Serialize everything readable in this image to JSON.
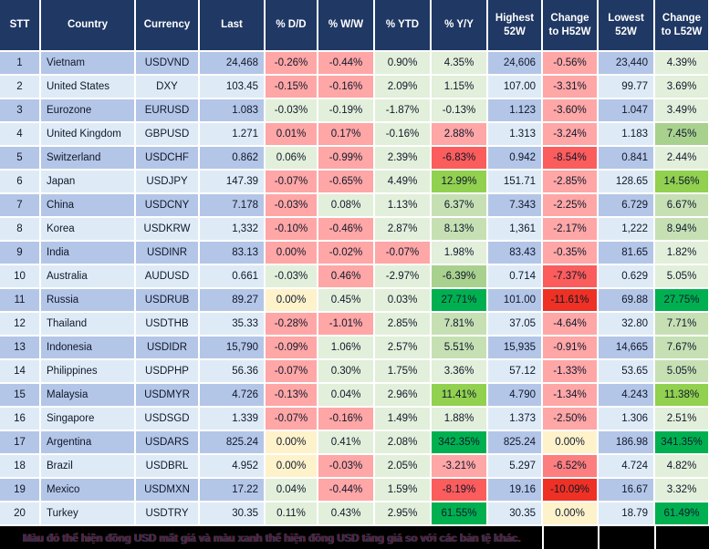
{
  "palette": {
    "p": "#FFA6A6",
    "p2": "#FC7E7E",
    "r": "#FB5C5C",
    "R": "#EE3124",
    "y": "#FEF2CB",
    "g": "#E2EFDA",
    "g2": "#C6E0B4",
    "g3": "#A9D18E",
    "g4": "#92D050",
    "g5": "#00B050",
    "header_bg": "#203864",
    "header_text": "#FFFFFF",
    "row_odd": "#B4C6E7",
    "row_even": "#DEEBF7",
    "note_bg": "#000000"
  },
  "table": {
    "columns": [
      {
        "key": "stt",
        "label": "STT"
      },
      {
        "key": "country",
        "label": "Country"
      },
      {
        "key": "currency",
        "label": "Currency"
      },
      {
        "key": "last",
        "label": "Last"
      },
      {
        "key": "dd",
        "label": "% D/D"
      },
      {
        "key": "ww",
        "label": "% W/W"
      },
      {
        "key": "ytd",
        "label": "% YTD"
      },
      {
        "key": "yy",
        "label": "% Y/Y"
      },
      {
        "key": "h52w",
        "label": "Highest 52W"
      },
      {
        "key": "ch52w",
        "label": "Change to H52W"
      },
      {
        "key": "l52w",
        "label": "Lowest 52W"
      },
      {
        "key": "cl52w",
        "label": "Change to L52W"
      }
    ],
    "rows": [
      [
        "1",
        "Vietnam",
        "USDVND",
        "24,468",
        [
          "-0.26%",
          "p"
        ],
        [
          "-0.44%",
          "p"
        ],
        [
          "0.90%",
          "g"
        ],
        [
          "4.35%",
          "g"
        ],
        "24,606",
        [
          "-0.56%",
          "p"
        ],
        "23,440",
        [
          "4.39%",
          "g"
        ]
      ],
      [
        "2",
        "United States",
        "DXY",
        "103.45",
        [
          "-0.15%",
          "p"
        ],
        [
          "-0.16%",
          "p"
        ],
        [
          "2.09%",
          "g"
        ],
        [
          "1.15%",
          "g"
        ],
        "107.00",
        [
          "-3.31%",
          "p"
        ],
        "99.77",
        [
          "3.69%",
          "g"
        ]
      ],
      [
        "3",
        "Eurozone",
        "EURUSD",
        "1.083",
        [
          "-0.03%",
          "g"
        ],
        [
          "-0.19%",
          "g"
        ],
        [
          "-1.87%",
          "g"
        ],
        [
          "-0.13%",
          "g"
        ],
        "1.123",
        [
          "-3.60%",
          "p"
        ],
        "1.047",
        [
          "3.49%",
          "g"
        ]
      ],
      [
        "4",
        "United Kingdom",
        "GBPUSD",
        "1.271",
        [
          "0.01%",
          "p"
        ],
        [
          "0.17%",
          "p"
        ],
        [
          "-0.16%",
          "g"
        ],
        [
          "2.88%",
          "p"
        ],
        "1.313",
        [
          "-3.24%",
          "p"
        ],
        "1.183",
        [
          "7.45%",
          "g3"
        ]
      ],
      [
        "5",
        "Switzerland",
        "USDCHF",
        "0.862",
        [
          "0.06%",
          "g"
        ],
        [
          "-0.99%",
          "p"
        ],
        [
          "2.39%",
          "g"
        ],
        [
          "-6.83%",
          "r"
        ],
        "0.942",
        [
          "-8.54%",
          "r"
        ],
        "0.841",
        [
          "2.44%",
          "g"
        ]
      ],
      [
        "6",
        "Japan",
        "USDJPY",
        "147.39",
        [
          "-0.07%",
          "p"
        ],
        [
          "-0.65%",
          "p"
        ],
        [
          "4.49%",
          "g"
        ],
        [
          "12.99%",
          "g4"
        ],
        "151.71",
        [
          "-2.85%",
          "p"
        ],
        "128.65",
        [
          "14.56%",
          "g4"
        ]
      ],
      [
        "7",
        "China",
        "USDCNY",
        "7.178",
        [
          "-0.03%",
          "p"
        ],
        [
          "0.08%",
          "g"
        ],
        [
          "1.13%",
          "g"
        ],
        [
          "6.37%",
          "g2"
        ],
        "7.343",
        [
          "-2.25%",
          "p"
        ],
        "6.729",
        [
          "6.67%",
          "g2"
        ]
      ],
      [
        "8",
        "Korea",
        "USDKRW",
        "1,332",
        [
          "-0.10%",
          "p"
        ],
        [
          "-0.46%",
          "p"
        ],
        [
          "2.87%",
          "g"
        ],
        [
          "8.13%",
          "g2"
        ],
        "1,361",
        [
          "-2.17%",
          "p"
        ],
        "1,222",
        [
          "8.94%",
          "g2"
        ]
      ],
      [
        "9",
        "India",
        "USDINR",
        "83.13",
        [
          "0.00%",
          "p"
        ],
        [
          "-0.02%",
          "p"
        ],
        [
          "-0.07%",
          "p"
        ],
        [
          "1.98%",
          "g"
        ],
        "83.43",
        [
          "-0.35%",
          "p"
        ],
        "81.65",
        [
          "1.82%",
          "g"
        ]
      ],
      [
        "10",
        "Australia",
        "AUDUSD",
        "0.661",
        [
          "-0.03%",
          "g"
        ],
        [
          "0.46%",
          "p"
        ],
        [
          "-2.97%",
          "g"
        ],
        [
          "-6.39%",
          "g3"
        ],
        "0.714",
        [
          "-7.37%",
          "r"
        ],
        "0.629",
        [
          "5.05%",
          "g"
        ]
      ],
      [
        "11",
        "Russia",
        "USDRUB",
        "89.27",
        [
          "0.00%",
          "y"
        ],
        [
          "0.45%",
          "g"
        ],
        [
          "0.03%",
          "g"
        ],
        [
          "27.71%",
          "g5"
        ],
        "101.00",
        [
          "-11.61%",
          "R"
        ],
        "69.88",
        [
          "27.75%",
          "g5"
        ]
      ],
      [
        "12",
        "Thailand",
        "USDTHB",
        "35.33",
        [
          "-0.28%",
          "p"
        ],
        [
          "-1.01%",
          "p"
        ],
        [
          "2.85%",
          "g"
        ],
        [
          "7.81%",
          "g2"
        ],
        "37.05",
        [
          "-4.64%",
          "p"
        ],
        "32.80",
        [
          "7.71%",
          "g2"
        ]
      ],
      [
        "13",
        "Indonesia",
        "USDIDR",
        "15,790",
        [
          "-0.09%",
          "p"
        ],
        [
          "1.06%",
          "g"
        ],
        [
          "2.57%",
          "g"
        ],
        [
          "5.51%",
          "g2"
        ],
        "15,935",
        [
          "-0.91%",
          "p"
        ],
        "14,665",
        [
          "7.67%",
          "g2"
        ]
      ],
      [
        "14",
        "Philippines",
        "USDPHP",
        "56.36",
        [
          "-0.07%",
          "p"
        ],
        [
          "0.30%",
          "g"
        ],
        [
          "1.75%",
          "g"
        ],
        [
          "3.36%",
          "g"
        ],
        "57.12",
        [
          "-1.33%",
          "p"
        ],
        "53.65",
        [
          "5.05%",
          "g2"
        ]
      ],
      [
        "15",
        "Malaysia",
        "USDMYR",
        "4.726",
        [
          "-0.13%",
          "p"
        ],
        [
          "0.04%",
          "g"
        ],
        [
          "2.96%",
          "g"
        ],
        [
          "11.41%",
          "g4"
        ],
        "4.790",
        [
          "-1.34%",
          "p"
        ],
        "4.243",
        [
          "11.38%",
          "g4"
        ]
      ],
      [
        "16",
        "Singapore",
        "USDSGD",
        "1.339",
        [
          "-0.07%",
          "p"
        ],
        [
          "-0.16%",
          "p"
        ],
        [
          "1.49%",
          "g"
        ],
        [
          "1.88%",
          "g"
        ],
        "1.373",
        [
          "-2.50%",
          "p"
        ],
        "1.306",
        [
          "2.51%",
          "g"
        ]
      ],
      [
        "17",
        "Argentina",
        "USDARS",
        "825.24",
        [
          "0.00%",
          "y"
        ],
        [
          "0.41%",
          "g"
        ],
        [
          "2.08%",
          "g"
        ],
        [
          "342.35%",
          "g5"
        ],
        "825.24",
        [
          "0.00%",
          "y"
        ],
        "186.98",
        [
          "341.35%",
          "g5"
        ]
      ],
      [
        "18",
        "Brazil",
        "USDBRL",
        "4.952",
        [
          "0.00%",
          "y"
        ],
        [
          "-0.03%",
          "p"
        ],
        [
          "2.05%",
          "g"
        ],
        [
          "-3.21%",
          "p"
        ],
        "5.297",
        [
          "-6.52%",
          "p2"
        ],
        "4.724",
        [
          "4.82%",
          "g"
        ]
      ],
      [
        "19",
        "Mexico",
        "USDMXN",
        "17.22",
        [
          "0.04%",
          "g"
        ],
        [
          "-0.44%",
          "p"
        ],
        [
          "1.59%",
          "g"
        ],
        [
          "-8.19%",
          "r"
        ],
        "19.16",
        [
          "-10.09%",
          "R"
        ],
        "16.67",
        [
          "3.32%",
          "g"
        ]
      ],
      [
        "20",
        "Turkey",
        "USDTRY",
        "30.35",
        [
          "0.11%",
          "g"
        ],
        [
          "0.43%",
          "g"
        ],
        [
          "2.95%",
          "g"
        ],
        [
          "61.55%",
          "g5"
        ],
        "30.35",
        [
          "0.00%",
          "y"
        ],
        "18.79",
        [
          "61.49%",
          "g5"
        ]
      ]
    ]
  },
  "note": {
    "text": "Màu đỏ thể hiện đồng USD mất giá và màu xanh thể hiện đồng USD tăng giá so với các bản tệ khác."
  }
}
